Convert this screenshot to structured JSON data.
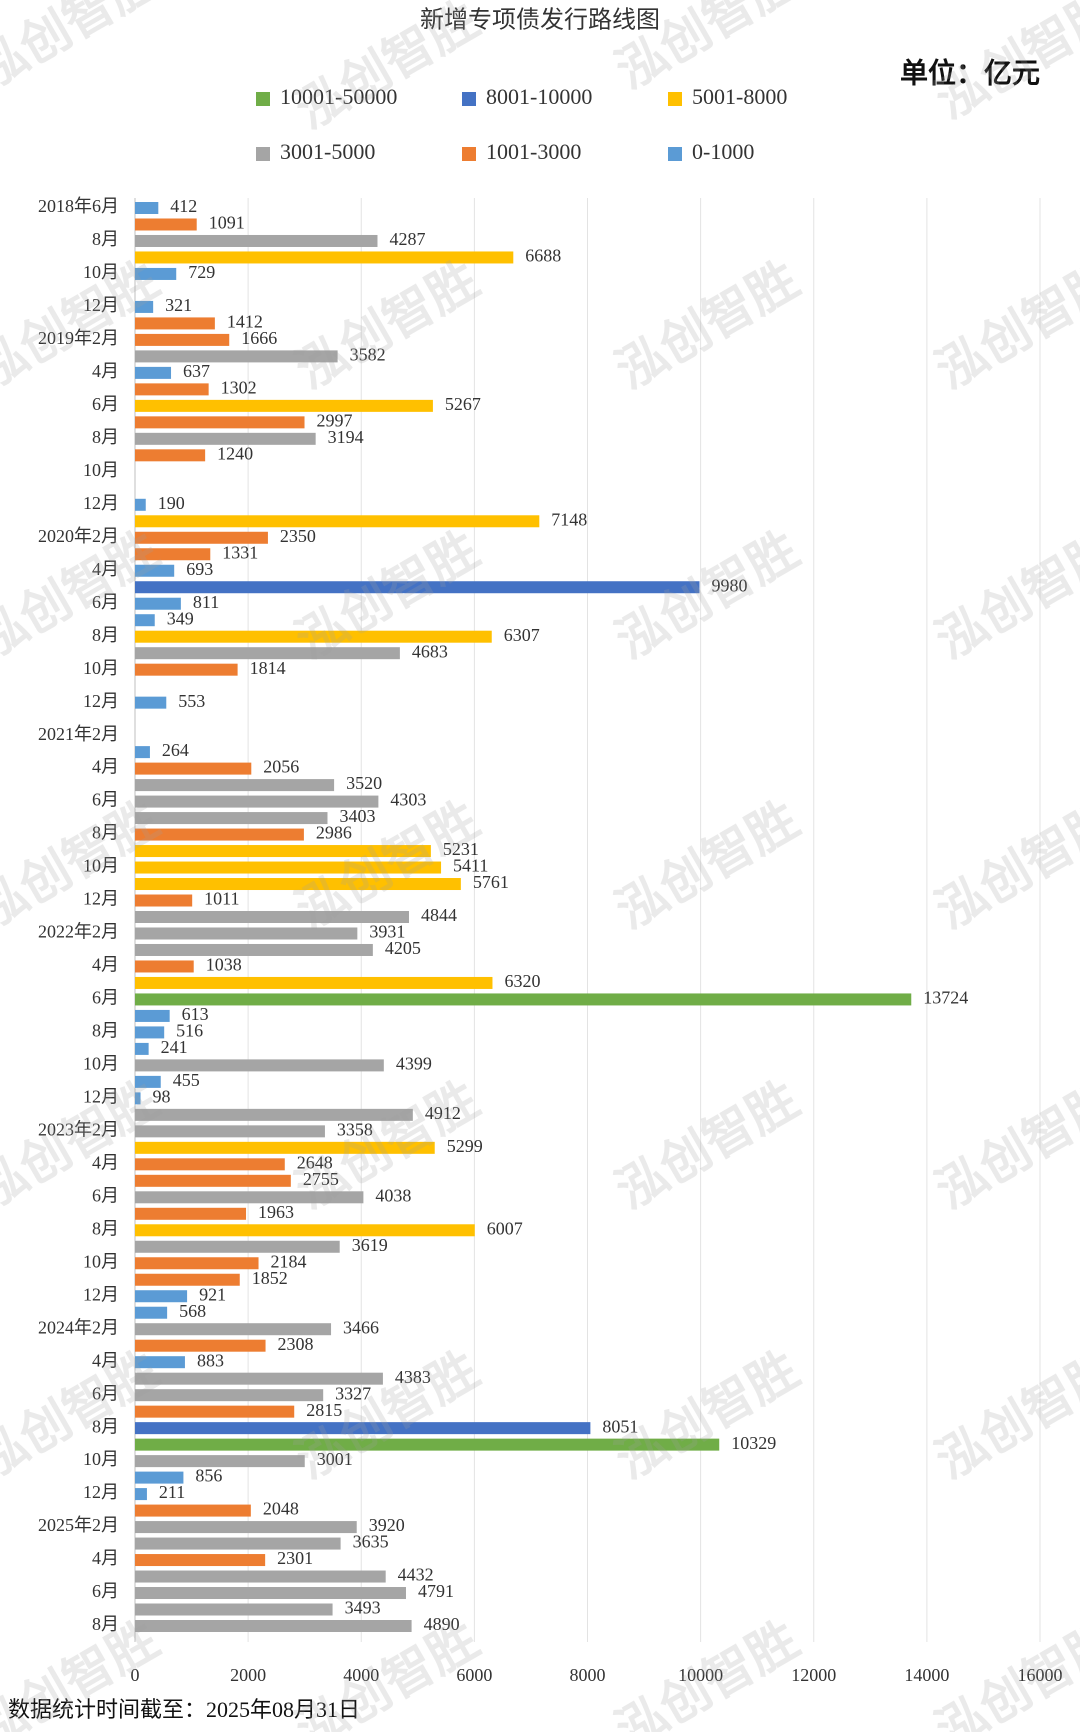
{
  "chart_data": {
    "type": "bar",
    "orientation": "horizontal",
    "title": "新增专项债发行路线图",
    "unit": "单位：亿元",
    "note": "数据统计时间截至：2025年08月31日",
    "watermark": "泓创智胜",
    "categories": [
      "2018年6月",
      null,
      "8月",
      null,
      "10月",
      null,
      "12月",
      null,
      "2019年2月",
      null,
      "4月",
      null,
      "6月",
      null,
      "8月",
      null,
      "10月",
      null,
      "12月",
      null,
      "2020年2月",
      null,
      "4月",
      null,
      "6月",
      null,
      "8月",
      null,
      "10月",
      null,
      "12月",
      null,
      "2021年2月",
      null,
      "4月",
      null,
      "6月",
      null,
      "8月",
      null,
      "10月",
      null,
      "12月",
      null,
      "2022年2月",
      null,
      "4月",
      null,
      "6月",
      null,
      "8月",
      null,
      "10月",
      null,
      "12月",
      null,
      "2023年2月",
      null,
      "4月",
      null,
      "6月",
      null,
      "8月",
      null,
      "10月",
      null,
      "12月",
      null,
      "2024年2月",
      null,
      "4月",
      null,
      "6月",
      null,
      "8月",
      null,
      "10月",
      null,
      "12月",
      null,
      "2025年2月",
      null,
      "4月",
      null,
      "6月",
      null,
      "8月"
    ],
    "series": [
      {
        "name": "10001-50000",
        "color": "#70ad47",
        "values": [
          null,
          null,
          null,
          null,
          null,
          null,
          null,
          null,
          null,
          null,
          null,
          null,
          null,
          null,
          null,
          null,
          null,
          null,
          null,
          null,
          null,
          null,
          null,
          null,
          null,
          null,
          null,
          null,
          null,
          null,
          null,
          null,
          null,
          null,
          null,
          null,
          null,
          null,
          null,
          null,
          null,
          null,
          null,
          null,
          null,
          null,
          null,
          null,
          13724,
          null,
          null,
          null,
          null,
          null,
          null,
          null,
          null,
          null,
          null,
          null,
          null,
          null,
          null,
          null,
          null,
          null,
          null,
          null,
          null,
          null,
          null,
          null,
          null,
          null,
          null,
          10329,
          null,
          null,
          null,
          null,
          null,
          null,
          null,
          null,
          null,
          null,
          null
        ]
      },
      {
        "name": "8001-10000",
        "color": "#4472c4",
        "values": [
          null,
          null,
          null,
          null,
          null,
          null,
          null,
          null,
          null,
          null,
          null,
          null,
          null,
          null,
          null,
          null,
          null,
          null,
          null,
          null,
          null,
          null,
          null,
          9980,
          null,
          null,
          null,
          null,
          null,
          null,
          null,
          null,
          null,
          null,
          null,
          null,
          null,
          null,
          null,
          null,
          null,
          null,
          null,
          null,
          null,
          null,
          null,
          null,
          null,
          null,
          null,
          null,
          null,
          null,
          null,
          null,
          null,
          null,
          null,
          null,
          null,
          null,
          null,
          null,
          null,
          null,
          null,
          null,
          null,
          null,
          null,
          null,
          null,
          null,
          8051,
          null,
          null,
          null,
          null,
          null,
          null,
          null,
          null,
          null,
          null,
          null,
          null
        ]
      },
      {
        "name": "5001-8000",
        "color": "#ffc000",
        "values": [
          null,
          null,
          null,
          6688,
          null,
          null,
          null,
          null,
          null,
          null,
          null,
          null,
          5267,
          null,
          null,
          null,
          null,
          null,
          null,
          7148,
          null,
          null,
          null,
          null,
          null,
          null,
          6307,
          null,
          null,
          null,
          null,
          null,
          null,
          null,
          null,
          null,
          null,
          null,
          null,
          5231,
          5411,
          5761,
          null,
          null,
          null,
          null,
          null,
          6320,
          null,
          null,
          null,
          null,
          null,
          null,
          null,
          null,
          null,
          5299,
          null,
          null,
          null,
          null,
          6007,
          null,
          null,
          null,
          null,
          null,
          null,
          null,
          null,
          null,
          null,
          null,
          null,
          null,
          null,
          null,
          null,
          null,
          null,
          null,
          null,
          null,
          null,
          null,
          null
        ]
      },
      {
        "name": "3001-5000",
        "color": "#a5a5a5",
        "values": [
          null,
          null,
          4287,
          null,
          null,
          null,
          null,
          null,
          null,
          3582,
          null,
          null,
          null,
          null,
          3194,
          null,
          null,
          null,
          null,
          null,
          null,
          null,
          null,
          null,
          null,
          null,
          null,
          4683,
          null,
          null,
          null,
          null,
          null,
          null,
          null,
          3520,
          4303,
          3403,
          null,
          null,
          null,
          null,
          null,
          4844,
          3931,
          4205,
          null,
          null,
          null,
          null,
          null,
          null,
          4399,
          null,
          null,
          4912,
          3358,
          null,
          null,
          null,
          4038,
          null,
          null,
          3619,
          null,
          null,
          null,
          null,
          3466,
          null,
          null,
          4383,
          3327,
          null,
          null,
          null,
          3001,
          null,
          null,
          null,
          3920,
          3635,
          null,
          4432,
          4791,
          3493,
          4890
        ]
      },
      {
        "name": "1001-3000",
        "color": "#ed7d31",
        "values": [
          null,
          1091,
          null,
          null,
          null,
          null,
          null,
          1412,
          1666,
          null,
          null,
          1302,
          null,
          2997,
          null,
          1240,
          null,
          null,
          null,
          null,
          2350,
          1331,
          null,
          null,
          null,
          null,
          null,
          null,
          1814,
          null,
          null,
          null,
          null,
          null,
          2056,
          null,
          null,
          null,
          2986,
          null,
          null,
          null,
          1011,
          null,
          null,
          null,
          1038,
          null,
          null,
          null,
          null,
          null,
          null,
          null,
          null,
          null,
          null,
          null,
          2648,
          2755,
          null,
          1963,
          null,
          null,
          2184,
          1852,
          null,
          null,
          null,
          2308,
          null,
          null,
          null,
          2815,
          null,
          null,
          null,
          null,
          null,
          2048,
          null,
          null,
          2301,
          null,
          null,
          null,
          null
        ]
      },
      {
        "name": "0-1000",
        "color": "#5b9bd5",
        "values": [
          412,
          null,
          null,
          null,
          729,
          null,
          321,
          null,
          null,
          null,
          637,
          null,
          null,
          null,
          null,
          null,
          null,
          null,
          190,
          null,
          null,
          null,
          693,
          null,
          811,
          349,
          null,
          null,
          null,
          null,
          553,
          null,
          null,
          264,
          null,
          null,
          null,
          null,
          null,
          null,
          null,
          null,
          null,
          null,
          null,
          null,
          null,
          null,
          null,
          613,
          516,
          241,
          null,
          455,
          98,
          null,
          null,
          null,
          null,
          null,
          null,
          null,
          null,
          null,
          null,
          null,
          921,
          568,
          null,
          null,
          883,
          null,
          null,
          null,
          null,
          null,
          null,
          856,
          211,
          null,
          null,
          null,
          null,
          null,
          null,
          null,
          null
        ]
      }
    ],
    "xlim": [
      0,
      16000
    ],
    "xticks": [
      0,
      2000,
      4000,
      6000,
      8000,
      10000,
      12000,
      14000,
      16000
    ],
    "grid": true
  }
}
